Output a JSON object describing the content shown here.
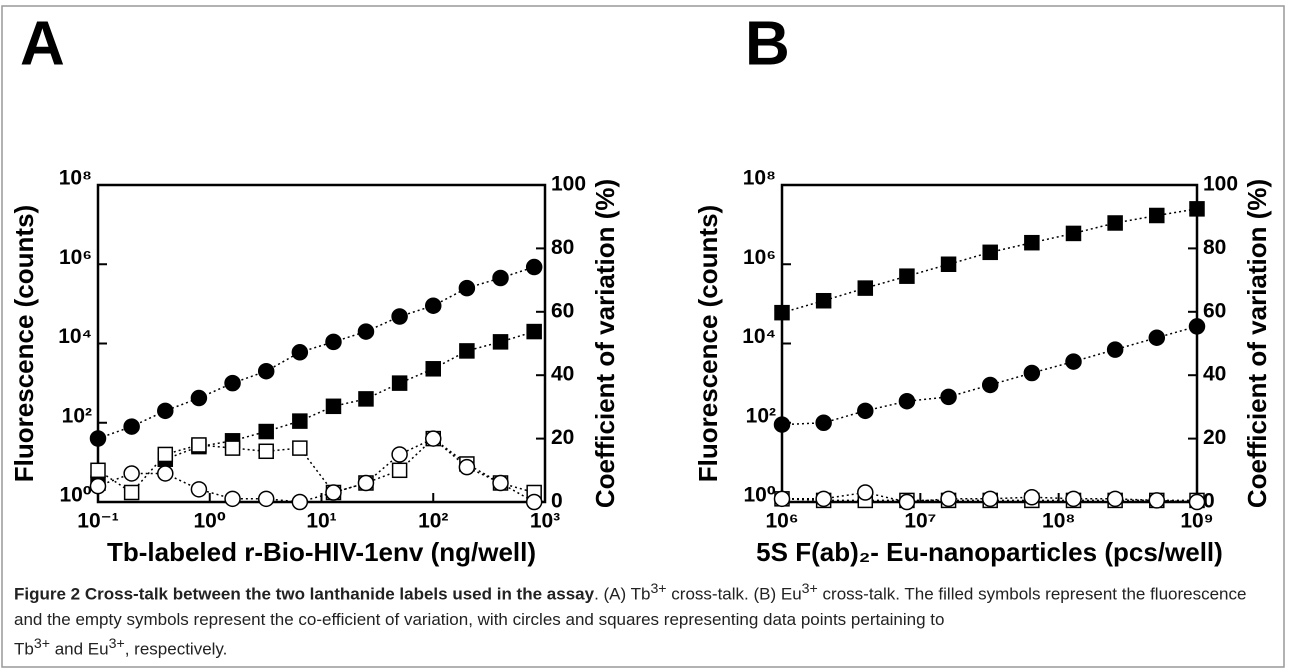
{
  "chart_data": [
    {
      "type": "line",
      "panel": "A",
      "log_x": true,
      "log_y": true,
      "x_label": "Tb-labeled r-Bio-HIV-1env (ng/well)",
      "y_label": "Fluorescence (counts)",
      "y2_label": "Coefficient of variation (%)",
      "x": [
        0.1,
        0.2,
        0.4,
        0.8,
        1.6,
        3.2,
        6.4,
        12.8,
        25,
        50,
        100,
        200,
        400,
        800
      ],
      "xlim": [
        0.1,
        1000
      ],
      "xticks": [
        {
          "value": 0.1,
          "label": "10⁻¹"
        },
        {
          "value": 1,
          "label": "10⁰"
        },
        {
          "value": 10,
          "label": "10¹"
        },
        {
          "value": 100,
          "label": "10²"
        },
        {
          "value": 1000,
          "label": "10³"
        }
      ],
      "ylim": [
        1,
        100000000
      ],
      "yticks": [
        {
          "value": 1,
          "label": "10⁰"
        },
        {
          "value": 100,
          "label": "10²"
        },
        {
          "value": 10000,
          "label": "10⁴"
        },
        {
          "value": 1000000,
          "label": "10⁶"
        },
        {
          "value": 100000000,
          "label": "10⁸"
        }
      ],
      "y2lim": [
        0,
        100
      ],
      "y2ticks": [
        0,
        20,
        40,
        60,
        80,
        100
      ],
      "series": [
        {
          "marker": "circle",
          "filled": true,
          "color": "#000000",
          "values": [
            40,
            80,
            200,
            420,
            1000,
            2000,
            6000,
            11000,
            20000,
            48000,
            90000,
            250000,
            450000,
            850000
          ]
        },
        {
          "marker": "square",
          "filled": true,
          "color": "#000000",
          "values": [
            3,
            null,
            12,
            25,
            35,
            60,
            110,
            260,
            400,
            1000,
            2300,
            6500,
            11000,
            20000
          ]
        },
        {
          "marker": "square",
          "filled": false,
          "color": "#000000",
          "axis": "y2",
          "values": [
            10,
            3,
            15,
            18,
            17,
            16,
            17,
            3,
            6,
            10,
            20,
            12,
            6,
            3
          ]
        },
        {
          "marker": "circle",
          "filled": false,
          "color": "#000000",
          "axis": "y2",
          "values": [
            5,
            9,
            9,
            4,
            1,
            1,
            0,
            3,
            6,
            15,
            20,
            11,
            6,
            0
          ]
        }
      ]
    },
    {
      "type": "line",
      "panel": "B",
      "log_x": true,
      "log_y": true,
      "x_label": "5S F(ab)₂- Eu-nanoparticles (pcs/well)",
      "y_label": "Fluorescence (counts)",
      "y2_label": "Coefficient of variation (%)",
      "x": [
        1000000,
        2000000,
        4000000,
        8000000,
        16000000,
        32000000,
        64000000,
        128000000,
        256000000,
        512000000,
        1000000000
      ],
      "xlim": [
        1000000,
        1000000000
      ],
      "xticks": [
        {
          "value": 1000000,
          "label": "10⁶"
        },
        {
          "value": 10000000,
          "label": "10⁷"
        },
        {
          "value": 100000000,
          "label": "10⁸"
        },
        {
          "value": 1000000000,
          "label": "10⁹"
        }
      ],
      "ylim": [
        1,
        100000000
      ],
      "yticks": [
        {
          "value": 1,
          "label": "10⁰"
        },
        {
          "value": 100,
          "label": "10²"
        },
        {
          "value": 10000,
          "label": "10⁴"
        },
        {
          "value": 1000000,
          "label": "10⁶"
        },
        {
          "value": 100000000,
          "label": "10⁸"
        }
      ],
      "y2lim": [
        0,
        100
      ],
      "y2ticks": [
        0,
        20,
        40,
        60,
        80,
        100
      ],
      "series": [
        {
          "marker": "square",
          "filled": true,
          "color": "#000000",
          "values": [
            60000,
            120000,
            250000,
            500000,
            1000000,
            2000000,
            3500000,
            6000000,
            11000000,
            17000000,
            25000000
          ]
        },
        {
          "marker": "circle",
          "filled": true,
          "color": "#000000",
          "values": [
            90,
            100,
            200,
            350,
            450,
            900,
            1800,
            3500,
            7000,
            14000,
            27000
          ]
        },
        {
          "marker": "square",
          "filled": false,
          "color": "#000000",
          "axis": "y2",
          "values": [
            1,
            0.5,
            0.5,
            0.5,
            0.5,
            0.5,
            0.5,
            0.5,
            0.5,
            0.5,
            0.5
          ]
        },
        {
          "marker": "circle",
          "filled": false,
          "color": "#000000",
          "axis": "y2",
          "values": [
            1,
            1,
            3,
            0,
            1,
            1,
            1.5,
            1,
            1,
            0.5,
            0
          ]
        }
      ]
    }
  ],
  "caption": {
    "label": "Figure 2",
    "title": "Cross-talk between the two lanthanide labels used in the assay",
    "text": [
      ". (A) Tb",
      "3+",
      " cross-talk. (B) Eu",
      "3+",
      " cross-talk. The filled symbols represent the fluorescence and the empty symbols represent the co-efficient of variation, with circles and squares representing data points pertaining to ",
      "Tb",
      "3+",
      " and Eu",
      "3+",
      ", respectively."
    ]
  }
}
